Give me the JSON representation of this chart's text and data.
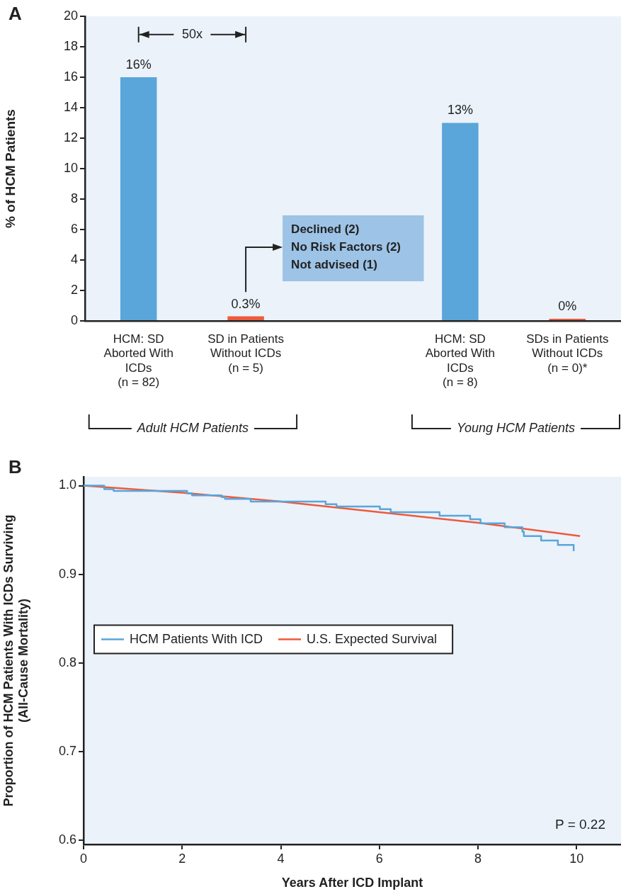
{
  "chart_data": [
    {
      "type": "bar",
      "title": "A",
      "ylabel": "% of HCM Patients",
      "categories": [
        "HCM: SD Aborted With ICDs (n = 82)",
        "SD in Patients Without ICDs (n = 5)",
        null,
        "HCM: SD Aborted With ICDs (n = 8)",
        "SDs in Patients Without ICDs (n = 0)*"
      ],
      "values": [
        16,
        0.3,
        null,
        13,
        0
      ],
      "colors": [
        "#5aa5da",
        "#ee5a3c",
        "#5aa5da",
        "#5aa5da",
        "#ee5a3c"
      ],
      "value_labels": [
        "16%",
        "0.3%",
        null,
        "13%",
        "0%"
      ],
      "ylim": [
        0,
        20
      ],
      "yticks": [
        0,
        2,
        4,
        6,
        8,
        10,
        12,
        14,
        16,
        18,
        20
      ],
      "grid": false,
      "annotations": [
        "50x",
        "Declined (2)",
        "No Risk Factors (2)",
        "Not advised (1)",
        "Adult HCM Patients",
        "Young HCM Patients"
      ]
    },
    {
      "type": "line",
      "title": "B",
      "xlabel": "Years After ICD Implant",
      "ylabel": "Proportion of HCM Patients With ICDs Surviving (All-Cause Mortality)",
      "series": [
        {
          "name": "HCM Patients With ICD",
          "type": "step",
          "color": "#5aa5da",
          "x": [
            0,
            0.42,
            0.61,
            2.1,
            2.2,
            2.8,
            2.87,
            3.39,
            4.91,
            5.13,
            6.01,
            6.23,
            7.22,
            7.84,
            8.05,
            8.54,
            8.9,
            8.93,
            9.28,
            9.62,
            9.94
          ],
          "values": [
            1.0,
            0.996,
            0.994,
            0.9915,
            0.989,
            0.987,
            0.985,
            0.982,
            0.979,
            0.9765,
            0.9735,
            0.97,
            0.966,
            0.962,
            0.9575,
            0.953,
            0.948,
            0.943,
            0.938,
            0.933,
            0.926
          ]
        },
        {
          "name": "U.S. Expected Survival",
          "type": "line",
          "color": "#ee5a3c",
          "x": [
            0,
            2,
            4,
            6,
            8,
            10.07
          ],
          "values": [
            1.0,
            0.992,
            0.982,
            0.97,
            0.958,
            0.943
          ]
        }
      ],
      "xlim": [
        0,
        10.9
      ],
      "xticks": [
        0,
        2,
        4,
        6,
        8,
        10
      ],
      "ylim": [
        0.595,
        1.01
      ],
      "yticks": [
        {
          "value": 0.6,
          "label": "0.6"
        },
        {
          "value": 0.7,
          "label": "0.7"
        },
        {
          "value": 0.8,
          "label": "0.8"
        },
        {
          "value": 0.9,
          "label": "0.9"
        },
        {
          "value": 1,
          "label": "1.0"
        }
      ],
      "grid": false,
      "legend": "center left",
      "annotations": [
        "P = 0.22"
      ]
    }
  ]
}
